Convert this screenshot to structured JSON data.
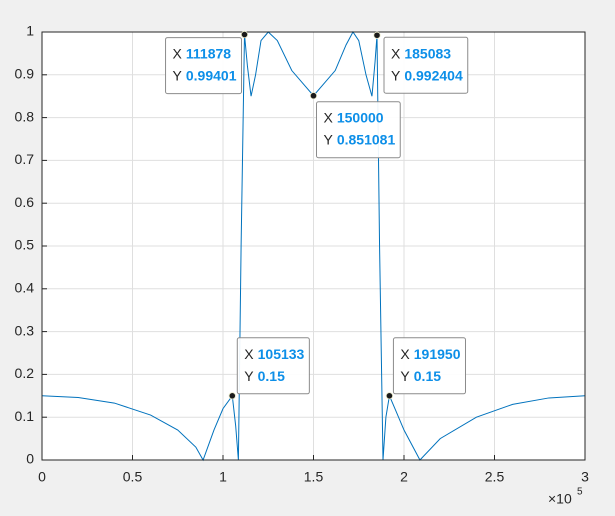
{
  "chart_data": {
    "type": "line",
    "x": [
      0,
      20000,
      40000,
      60000,
      75000,
      85000,
      89000,
      95000,
      100000,
      105133,
      107000,
      108500,
      110000,
      111878,
      113500,
      115500,
      118000,
      121000,
      125000,
      130000,
      138000,
      150000,
      162000,
      168000,
      171800,
      175000,
      179000,
      182300,
      184000,
      185083,
      186500,
      188400,
      190000,
      191950,
      195000,
      200000,
      208800,
      220000,
      240000,
      260000,
      280000,
      300000
    ],
    "series": [
      {
        "color": "#0072bd",
        "values": [
          0.15,
          0.146,
          0.133,
          0.105,
          0.07,
          0.03,
          0,
          0.07,
          0.12,
          0.15,
          0.08,
          0,
          0.5,
          0.99401,
          0.92,
          0.85,
          0.9,
          0.98,
          1,
          0.98,
          0.91,
          0.851081,
          0.91,
          0.97,
          1,
          0.98,
          0.9,
          0.85,
          0.93,
          0.992404,
          0.5,
          0,
          0.1,
          0.15,
          0.12,
          0.07,
          0,
          0.05,
          0.1,
          0.13,
          0.145,
          0.15
        ]
      }
    ],
    "xlim": [
      0,
      300000
    ],
    "ylim": [
      0,
      1
    ],
    "xticks": [
      0,
      {
        "value": 50000,
        "label": "0.5"
      },
      {
        "value": 100000,
        "label": "1"
      },
      {
        "value": 150000,
        "label": "1.5"
      },
      {
        "value": 200000,
        "label": "2"
      },
      {
        "value": 250000,
        "label": "2.5"
      },
      {
        "value": 300000,
        "label": "3"
      }
    ],
    "yticks": [
      0,
      0.1,
      0.2,
      0.3,
      0.4,
      0.5,
      0.6,
      0.7,
      0.8,
      0.9,
      1
    ],
    "x_exponent_base": "×10",
    "x_exponent": "5",
    "grid": true,
    "datatip_x_label": "X",
    "datatip_y_label": "Y",
    "datatips": [
      {
        "x": 111878,
        "y": 0.99401
      },
      {
        "x": 150000,
        "y": 0.851081
      },
      {
        "x": 185083,
        "y": 0.992404
      },
      {
        "x": 105133,
        "y": 0.15
      },
      {
        "x": 191950,
        "y": 0.15
      }
    ]
  }
}
